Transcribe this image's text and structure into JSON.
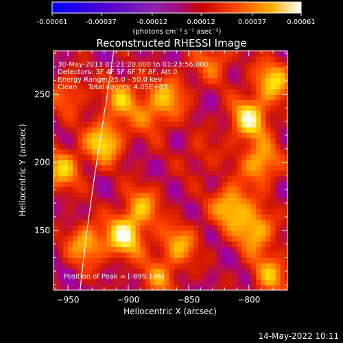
{
  "chart_data": {
    "type": "heatmap",
    "title": "Reconstructed RHESSI Image",
    "xlabel": "Heliocentric X (arcsec)",
    "ylabel": "Heliocentric Y (arcsec)",
    "xlim": [
      -962,
      -768
    ],
    "ylim": [
      106,
      282
    ],
    "xticks": [
      -950,
      -900,
      -850,
      -800
    ],
    "yticks": [
      150,
      200,
      250
    ],
    "colorbar": {
      "range": [
        -0.00061,
        0.00061
      ],
      "tick_labels": [
        "-0.00061",
        "-0.00037",
        "-0.00012",
        "0.00012",
        "0.00037",
        "0.00061"
      ],
      "tick_values": [
        -0.00061,
        -0.00037,
        -0.00012,
        0.00012,
        0.00037,
        0.00061
      ],
      "units_label": "(photons cm⁻² s⁻¹ asec⁻²)",
      "colors": [
        "#0000ff",
        "#5500c8",
        "#7a22b8",
        "#a000a0",
        "#d01800",
        "#ff4000",
        "#ff9600",
        "#ffe600",
        "#ffffff"
      ]
    },
    "annotations": [
      "30-May-2013 01:21:20.000 to 01:23:56.000",
      "Detectors: 3F 4F 5F 6F 7F 8F, Att 0",
      "Energy Range: 25.0 - 50.0 keV",
      "Clean     Total counts: 4.05E+03"
    ],
    "peak_label": "Position of Peak = [-899,146]",
    "peak": {
      "x": -899,
      "y": 146
    },
    "limb_curve": [
      {
        "x": -940,
        "y": 106
      },
      {
        "x": -935,
        "y": 145
      },
      {
        "x": -928,
        "y": 190
      },
      {
        "x": -920,
        "y": 235
      },
      {
        "x": -912,
        "y": 282
      }
    ],
    "sources": [
      {
        "x": -920,
        "y": 215,
        "v": 0.00055
      },
      {
        "x": -935,
        "y": 140,
        "v": 0.00045
      },
      {
        "x": -903,
        "y": 146,
        "v": 0.00061
      },
      {
        "x": -905,
        "y": 247,
        "v": 0.00042
      },
      {
        "x": -880,
        "y": 235,
        "v": 0.0003
      },
      {
        "x": -888,
        "y": 168,
        "v": 0.00038
      },
      {
        "x": -865,
        "y": 250,
        "v": 0.00035
      },
      {
        "x": -858,
        "y": 140,
        "v": 0.0004
      },
      {
        "x": -800,
        "y": 232,
        "v": 0.00058
      },
      {
        "x": -780,
        "y": 260,
        "v": 0.0005
      },
      {
        "x": -790,
        "y": 200,
        "v": 0.00048
      },
      {
        "x": -815,
        "y": 168,
        "v": 0.00052
      },
      {
        "x": -795,
        "y": 150,
        "v": 0.0005
      },
      {
        "x": -782,
        "y": 118,
        "v": 0.0004
      },
      {
        "x": -955,
        "y": 195,
        "v": 0.00045
      },
      {
        "x": -950,
        "y": 250,
        "v": 0.00028
      },
      {
        "x": -875,
        "y": 115,
        "v": 0.00032
      },
      {
        "x": -830,
        "y": 275,
        "v": 0.0003
      },
      {
        "x": -840,
        "y": 205,
        "v": 0.00015
      }
    ],
    "grid": false
  },
  "footer": {
    "timestamp": "14-May-2022 10:11"
  }
}
